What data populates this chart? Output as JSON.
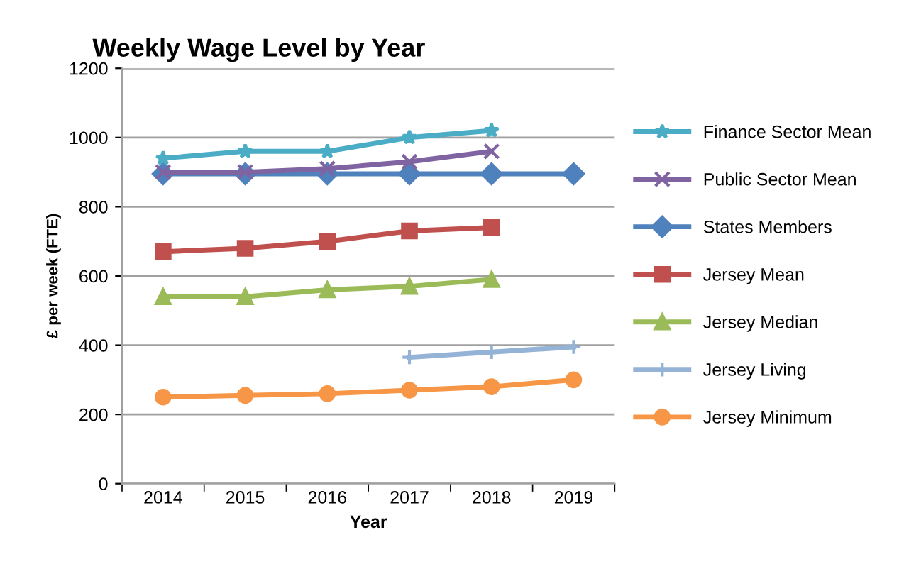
{
  "chart_data": {
    "type": "line",
    "title": "Weekly Wage Level by Year",
    "xlabel": "Year",
    "ylabel": "£ per week (FTE)",
    "categories": [
      "2014",
      "2015",
      "2016",
      "2017",
      "2018",
      "2019"
    ],
    "series": [
      {
        "name": "Finance Sector Mean",
        "color": "#4bacc6",
        "marker": "star",
        "values": [
          940,
          960,
          960,
          1000,
          1020,
          null
        ]
      },
      {
        "name": "Public Sector Mean",
        "color": "#8064a2",
        "marker": "cross",
        "values": [
          900,
          900,
          910,
          930,
          960,
          null
        ]
      },
      {
        "name": "States Members",
        "color": "#4f81bd",
        "marker": "diamond",
        "values": [
          895,
          895,
          895,
          895,
          895,
          895
        ]
      },
      {
        "name": "Jersey Mean",
        "color": "#c0504d",
        "marker": "square",
        "values": [
          670,
          680,
          700,
          730,
          740,
          null
        ]
      },
      {
        "name": "Jersey Median",
        "color": "#9bbb59",
        "marker": "triangle",
        "values": [
          540,
          540,
          560,
          570,
          590,
          null
        ]
      },
      {
        "name": "Jersey Living",
        "color": "#95b3d7",
        "marker": "plus",
        "values": [
          null,
          null,
          null,
          365,
          380,
          395
        ]
      },
      {
        "name": "Jersey Minimum",
        "color": "#f79646",
        "marker": "circle",
        "values": [
          250,
          255,
          260,
          270,
          280,
          300
        ]
      }
    ],
    "ylim": [
      0,
      1200
    ],
    "yticks": [
      0,
      200,
      400,
      600,
      800,
      1000,
      1200
    ],
    "grid": "y",
    "legend": "right",
    "line_style": "solid"
  }
}
